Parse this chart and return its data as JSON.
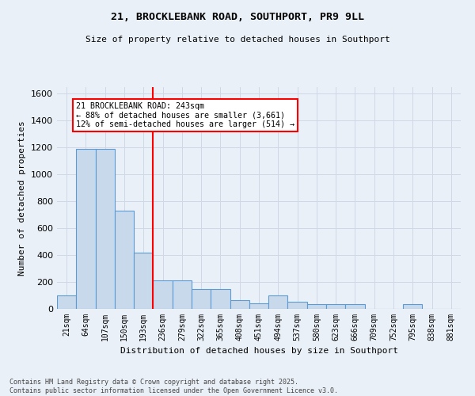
{
  "title_line1": "21, BROCKLEBANK ROAD, SOUTHPORT, PR9 9LL",
  "title_line2": "Size of property relative to detached houses in Southport",
  "xlabel": "Distribution of detached houses by size in Southport",
  "ylabel": "Number of detached properties",
  "categories": [
    "21sqm",
    "64sqm",
    "107sqm",
    "150sqm",
    "193sqm",
    "236sqm",
    "279sqm",
    "322sqm",
    "365sqm",
    "408sqm",
    "451sqm",
    "494sqm",
    "537sqm",
    "580sqm",
    "623sqm",
    "666sqm",
    "709sqm",
    "752sqm",
    "795sqm",
    "838sqm",
    "881sqm"
  ],
  "values": [
    100,
    1190,
    1190,
    730,
    420,
    215,
    215,
    150,
    150,
    65,
    40,
    100,
    55,
    35,
    35,
    35,
    0,
    0,
    35,
    0,
    0
  ],
  "bar_color": "#c8d9eb",
  "bar_edge_color": "#5b9bd5",
  "grid_color": "#d0d8e8",
  "background_color": "#eaf0f8",
  "vline_x_index": 5,
  "vline_color": "red",
  "annotation_title": "21 BROCKLEBANK ROAD: 243sqm",
  "annotation_line1": "← 88% of detached houses are smaller (3,661)",
  "annotation_line2": "12% of semi-detached houses are larger (514) →",
  "annotation_box_color": "white",
  "annotation_box_edge": "red",
  "ylim": [
    0,
    1650
  ],
  "yticks": [
    0,
    200,
    400,
    600,
    800,
    1000,
    1200,
    1400,
    1600
  ],
  "footer_line1": "Contains HM Land Registry data © Crown copyright and database right 2025.",
  "footer_line2": "Contains public sector information licensed under the Open Government Licence v3.0."
}
